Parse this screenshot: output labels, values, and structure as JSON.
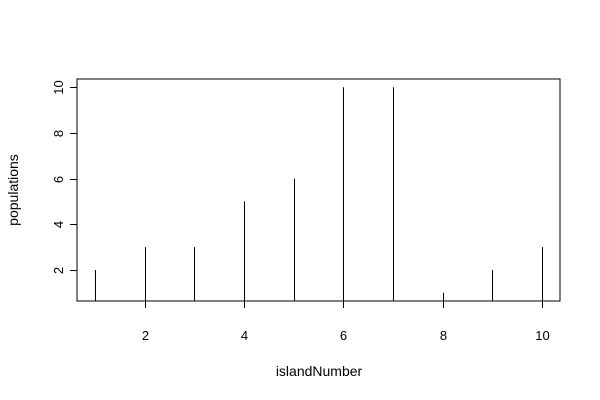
{
  "chart_data": {
    "type": "bar",
    "style": "histogram-spikes",
    "title": "",
    "xlabel": "islandNumber",
    "ylabel": "populations",
    "x": [
      1,
      2,
      3,
      4,
      5,
      6,
      7,
      8,
      9,
      10
    ],
    "y": [
      2,
      3,
      3,
      5,
      6,
      10,
      10,
      1,
      2,
      3
    ],
    "xlim": [
      0.64,
      10.36
    ],
    "ylim": [
      0.64,
      10.36
    ],
    "x_ticks": [
      2,
      4,
      6,
      8,
      10
    ],
    "y_ticks": [
      2,
      4,
      6,
      8,
      10
    ],
    "grid": false,
    "legend": "none",
    "colors": {
      "line": "#000000",
      "background": "#ffffff"
    }
  }
}
